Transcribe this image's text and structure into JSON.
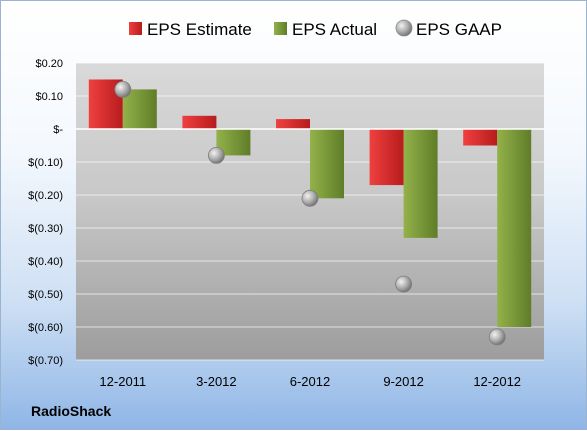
{
  "footer": {
    "company": "RadioShack"
  },
  "colors": {
    "estimate": "#d8232a",
    "actual": "#7b9a3a",
    "gaap": "#a9a9a9"
  },
  "chart_data": {
    "type": "bar",
    "categories": [
      "12-2011",
      "3-2012",
      "6-2012",
      "9-2012",
      "12-2012"
    ],
    "series": [
      {
        "name": "EPS Estimate",
        "values": [
          0.15,
          0.04,
          0.03,
          -0.17,
          -0.05
        ]
      },
      {
        "name": "EPS Actual",
        "values": [
          0.12,
          -0.08,
          -0.21,
          -0.33,
          -0.6
        ]
      },
      {
        "name": "EPS GAAP",
        "marker": "circle",
        "values": [
          0.12,
          -0.08,
          -0.21,
          -0.47,
          -0.63
        ]
      }
    ],
    "yticks": [
      {
        "value": 0.2,
        "label": "$0.20"
      },
      {
        "value": 0.1,
        "label": "$0.10"
      },
      {
        "value": 0,
        "label": "$-"
      },
      {
        "value": -0.1,
        "label": "$(0.10)"
      },
      {
        "value": -0.2,
        "label": "$(0.20)"
      },
      {
        "value": -0.3,
        "label": "$(0.30)"
      },
      {
        "value": -0.4,
        "label": "$(0.40)"
      },
      {
        "value": -0.5,
        "label": "$(0.50)"
      },
      {
        "value": -0.6,
        "label": "$(0.60)"
      },
      {
        "value": -0.7,
        "label": "$(0.70)"
      }
    ],
    "ylim": [
      -0.7,
      0.2
    ],
    "legend_position": "top",
    "grid": true
  }
}
